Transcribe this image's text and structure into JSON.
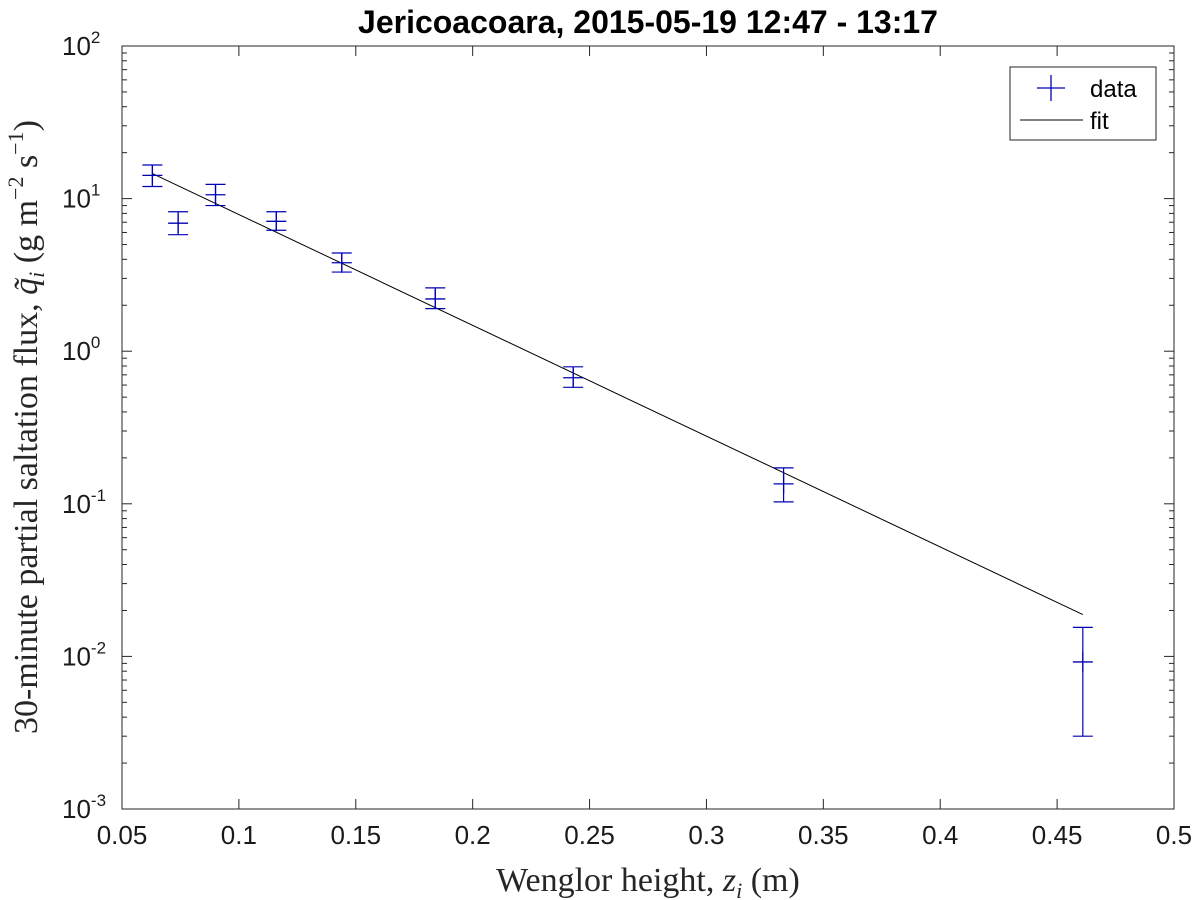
{
  "chart_data": {
    "type": "scatter",
    "title": "Jericoacoara, 2015-05-19 12:47 - 13:17",
    "xlabel": {
      "text": "Wenglor height, ",
      "symbol": "z",
      "subscript": "i",
      "unit": " (m)"
    },
    "ylabel": {
      "text": "30-minute partial saltation flux, ",
      "symbol": "q̃",
      "subscript": "i",
      "unit_open": " (g m",
      "unit_exp1": "−2",
      "unit_mid": " s",
      "unit_exp2": "−1",
      "unit_close": ")"
    },
    "xlim": [
      0.05,
      0.5
    ],
    "ylim": [
      0.001,
      100
    ],
    "yscale": "log",
    "xticks": [
      "0.05",
      "0.1",
      "0.15",
      "0.2",
      "0.25",
      "0.3",
      "0.35",
      "0.4",
      "0.45",
      "0.5"
    ],
    "xtick_values": [
      0.05,
      0.1,
      0.15,
      0.2,
      0.25,
      0.3,
      0.35,
      0.4,
      0.45,
      0.5
    ],
    "yticks": [
      {
        "base": "10",
        "exp": "-3",
        "value": 0.001
      },
      {
        "base": "10",
        "exp": "-2",
        "value": 0.01
      },
      {
        "base": "10",
        "exp": "-1",
        "value": 0.1
      },
      {
        "base": "10",
        "exp": "0",
        "value": 1
      },
      {
        "base": "10",
        "exp": "1",
        "value": 10
      },
      {
        "base": "10",
        "exp": "2",
        "value": 100
      }
    ],
    "grid": false,
    "legend_position": "top-right",
    "series": [
      {
        "name": "data",
        "kind": "errorbar",
        "color": "#0000b3",
        "points": [
          {
            "x": 0.063,
            "y": 14.2,
            "ylow": 12.0,
            "yhigh": 16.6
          },
          {
            "x": 0.074,
            "y": 6.9,
            "ylow": 5.8,
            "yhigh": 8.2
          },
          {
            "x": 0.09,
            "y": 10.6,
            "ylow": 9.0,
            "yhigh": 12.4
          },
          {
            "x": 0.116,
            "y": 7.1,
            "ylow": 6.2,
            "yhigh": 8.2
          },
          {
            "x": 0.144,
            "y": 3.8,
            "ylow": 3.3,
            "yhigh": 4.4
          },
          {
            "x": 0.184,
            "y": 2.2,
            "ylow": 1.9,
            "yhigh": 2.6
          },
          {
            "x": 0.243,
            "y": 0.67,
            "ylow": 0.58,
            "yhigh": 0.79
          },
          {
            "x": 0.333,
            "y": 0.135,
            "ylow": 0.103,
            "yhigh": 0.172
          },
          {
            "x": 0.461,
            "y": 0.0092,
            "ylow": 0.003,
            "yhigh": 0.0155
          }
        ]
      },
      {
        "name": "fit",
        "kind": "line",
        "color": "#000000",
        "x": [
          0.063,
          0.461
        ],
        "y": [
          14.6,
          0.0188
        ]
      }
    ]
  }
}
